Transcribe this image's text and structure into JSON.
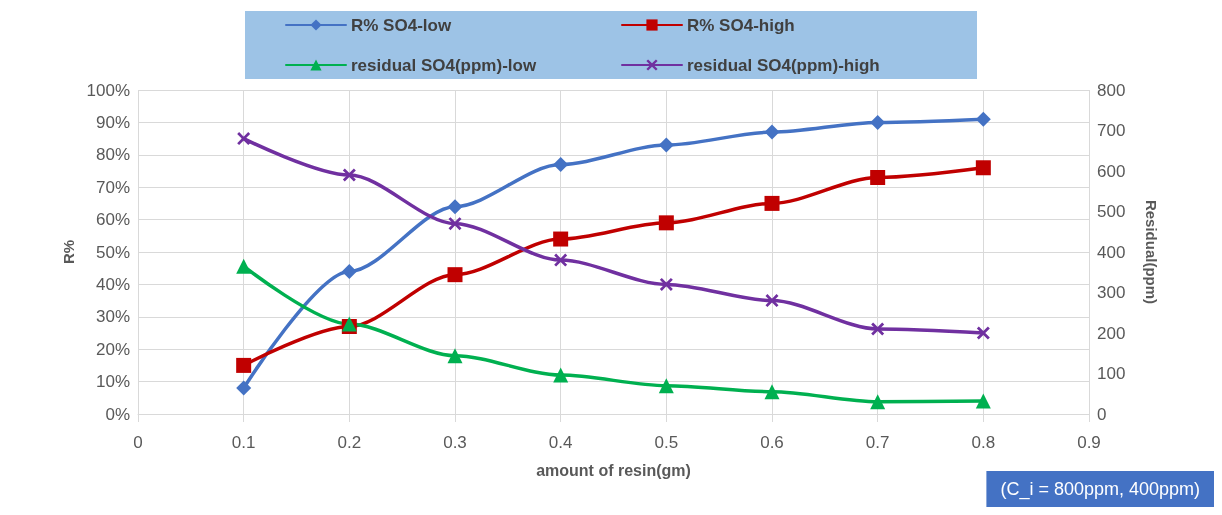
{
  "chart_data": {
    "type": "line",
    "xlabel": "amount of resin(gm)",
    "ylabel": "R%",
    "y2label": "Residual(ppm)",
    "x": [
      0.1,
      0.2,
      0.3,
      0.4,
      0.5,
      0.6,
      0.7,
      0.8
    ],
    "xlim": [
      0,
      0.9
    ],
    "xticks": [
      0,
      0.1,
      0.2,
      0.3,
      0.4,
      0.5,
      0.6,
      0.7,
      0.8,
      0.9
    ],
    "ylim": [
      0,
      100
    ],
    "yticks": [
      {
        "value": 0,
        "label": "0%"
      },
      {
        "value": 10,
        "label": "10%"
      },
      {
        "value": 20,
        "label": "20%"
      },
      {
        "value": 30,
        "label": "30%"
      },
      {
        "value": 40,
        "label": "40%"
      },
      {
        "value": 50,
        "label": "50%"
      },
      {
        "value": 60,
        "label": "60%"
      },
      {
        "value": 70,
        "label": "70%"
      },
      {
        "value": 80,
        "label": "80%"
      },
      {
        "value": 90,
        "label": "90%"
      },
      {
        "value": 100,
        "label": "100%"
      }
    ],
    "y2lim": [
      0,
      800
    ],
    "y2ticks": [
      0,
      100,
      200,
      300,
      400,
      500,
      600,
      700,
      800
    ],
    "grid": true,
    "legend": "top",
    "line_style": "solid",
    "series": [
      {
        "name": "R% SO4-low",
        "color": "#4472c4",
        "marker": "diamond",
        "values": [
          8,
          44,
          64,
          77,
          83,
          87,
          90,
          91
        ]
      },
      {
        "name": "R% SO4-high",
        "color": "#c00000",
        "marker": "square",
        "values": [
          15,
          27,
          43,
          54,
          59,
          65,
          73,
          76
        ]
      },
      {
        "name": "residual SO4(ppm)-low",
        "color": "#00b050",
        "marker": "triangle",
        "axis": "y2",
        "values": [
          365,
          222,
          144,
          96,
          70,
          55,
          30,
          32
        ]
      },
      {
        "name": "residual SO4(ppm)-high",
        "color": "#7030a0",
        "marker": "cross",
        "axis": "y2",
        "values": [
          680,
          590,
          470,
          380,
          320,
          280,
          210,
          200
        ]
      }
    ],
    "annotations": [
      "(C_i = 800ppm, 400ppm)"
    ]
  }
}
